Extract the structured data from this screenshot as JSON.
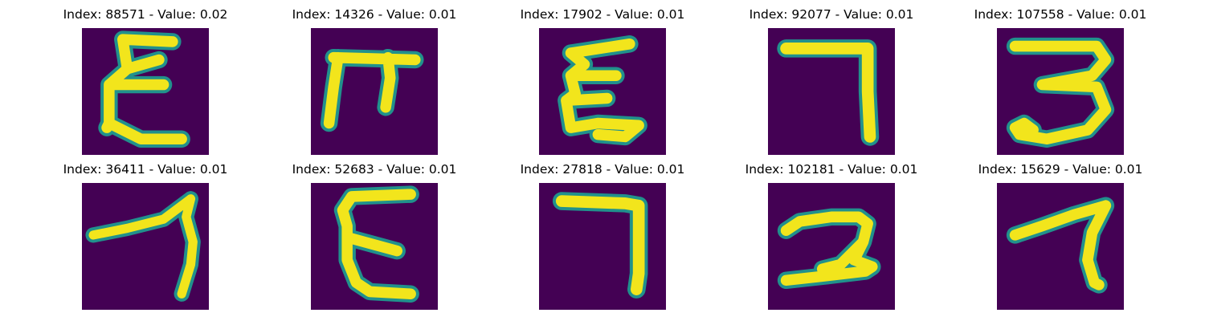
{
  "panels": [
    {
      "title": "Index: 88571 - Value: 0.02",
      "glyph": "sigma-e"
    },
    {
      "title": "Index: 14326 - Value: 0.01",
      "glyph": "pi"
    },
    {
      "title": "Index: 17902 - Value: 0.01",
      "glyph": "sigma-e-2"
    },
    {
      "title": "Index: 92077 - Value: 0.01",
      "glyph": "seven-square"
    },
    {
      "title": "Index: 107558 - Value: 0.01",
      "glyph": "three"
    },
    {
      "title": "Index: 36411 - Value: 0.01",
      "glyph": "seven-slanted"
    },
    {
      "title": "Index: 52683 - Value: 0.01",
      "glyph": "epsilon"
    },
    {
      "title": "Index: 27818 - Value: 0.01",
      "glyph": "seven-square-2"
    },
    {
      "title": "Index: 102181 - Value: 0.01",
      "glyph": "two"
    },
    {
      "title": "Index: 15629 - Value: 0.01",
      "glyph": "seven-slanted-2"
    }
  ],
  "colors": {
    "background": "#440154",
    "stroke": "#f2e51c",
    "edge": "#21918c"
  }
}
